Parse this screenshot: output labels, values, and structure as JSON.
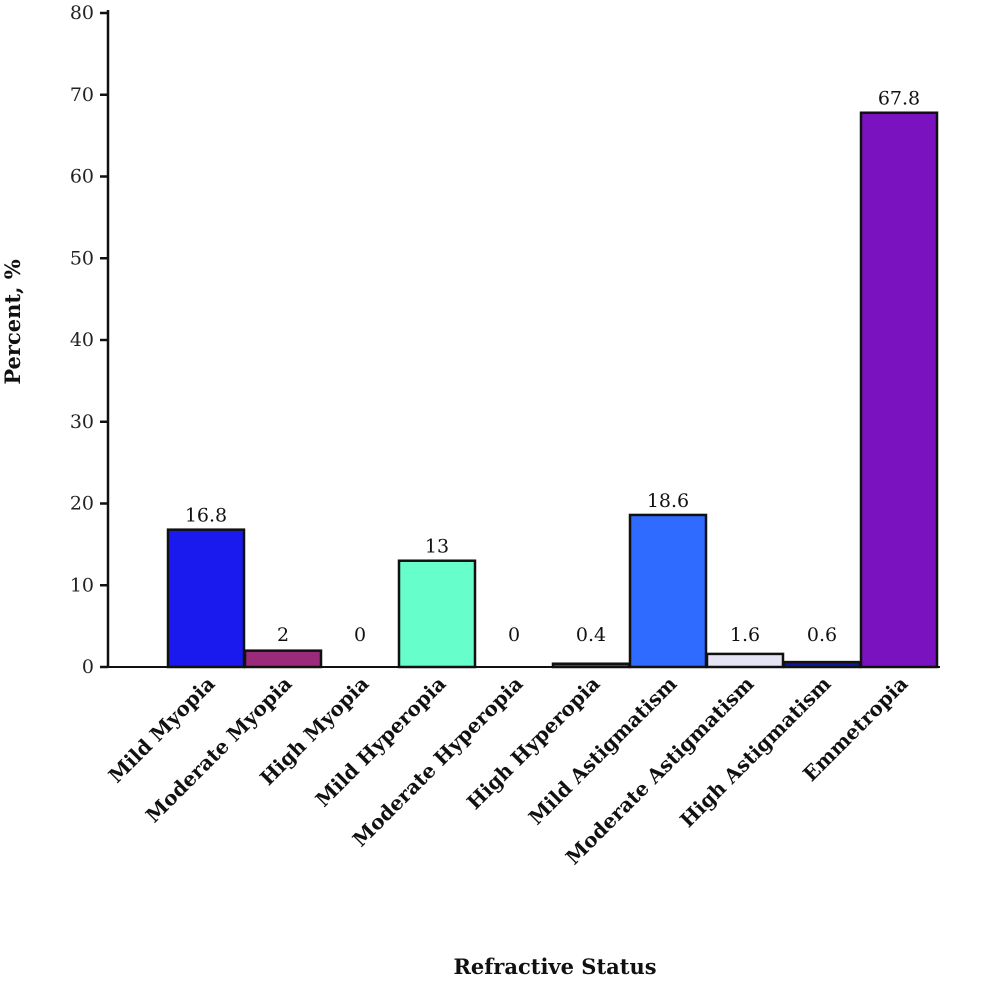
{
  "chart_data": {
    "type": "bar",
    "title": "",
    "xlabel": "Refractive Status",
    "ylabel": "Percent, %",
    "ylim": [
      0,
      80
    ],
    "yticks": [
      0,
      10,
      20,
      30,
      40,
      50,
      60,
      70,
      80
    ],
    "grid": false,
    "categories": [
      "Mild Myopia",
      "Moderate Myopia",
      "High Myopia",
      "Mild Hyperopia",
      "Moderate Hyperopia",
      "High Hyperopia",
      "Mild Astigmatism",
      "Moderate Astigmatism",
      "High Astigmatism",
      "Emmetropia"
    ],
    "values": [
      16.8,
      2,
      0,
      13,
      0,
      0.4,
      18.6,
      1.6,
      0.6,
      67.8
    ],
    "value_labels": [
      "16.8",
      "2",
      "0",
      "13",
      "0",
      "0.4",
      "18.6",
      "1.6",
      "0.6",
      "67.8"
    ],
    "colors": [
      "#1a1aee",
      "#9b2a7a",
      "#9b2a7a",
      "#66ffcc",
      "#66ffcc",
      "#2e7d32",
      "#2f6bff",
      "#e4e4f4",
      "#0a1aa0",
      "#7a12c0"
    ]
  }
}
